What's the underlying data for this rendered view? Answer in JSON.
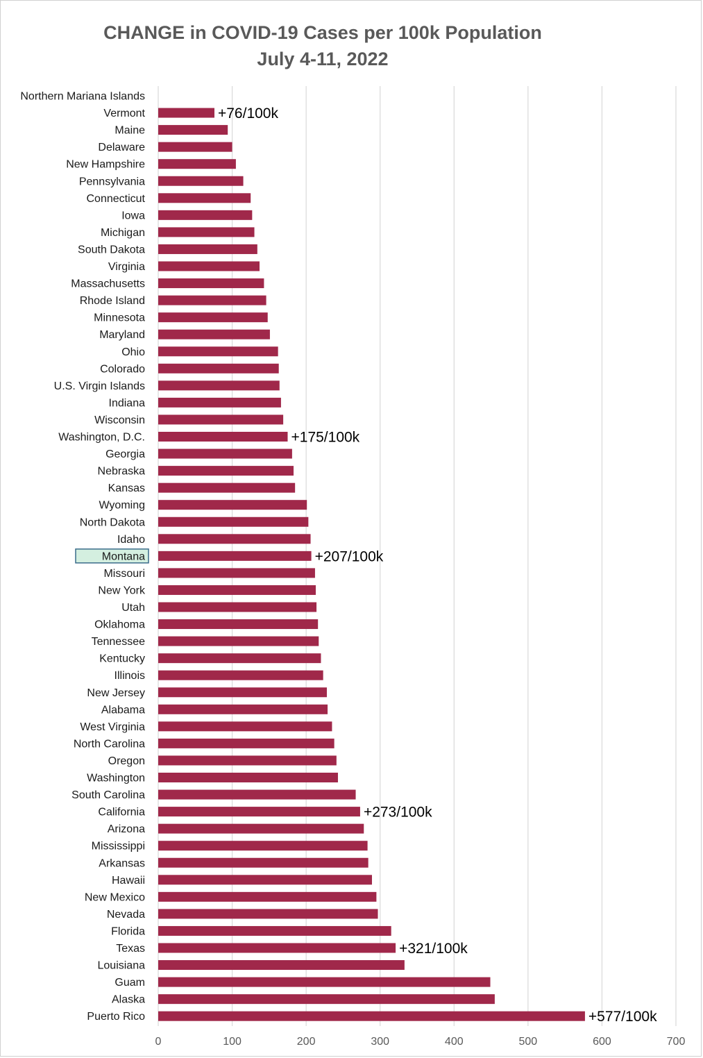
{
  "title": {
    "line1": "CHANGE in COVID-19 Cases per 100k Population",
    "line2": "July 4-11, 2022"
  },
  "colors": {
    "bar": "#a0284a",
    "grid": "#d9d9d9",
    "highlight_fill": "#d4efe0",
    "highlight_stroke": "#3a6b8a"
  },
  "highlighted_category": "Montana",
  "chart_data": {
    "type": "bar",
    "orientation": "horizontal",
    "title": "CHANGE in COVID-19 Cases per 100k Population July 4-11, 2022",
    "xlabel": "",
    "ylabel": "",
    "xlim": [
      0,
      700
    ],
    "xticks": [
      0,
      100,
      200,
      300,
      400,
      500,
      600,
      700
    ],
    "grid": "vertical",
    "categories": [
      "Northern Mariana Islands",
      "Vermont",
      "Maine",
      "Delaware",
      "New Hampshire",
      "Pennsylvania",
      "Connecticut",
      "Iowa",
      "Michigan",
      "South Dakota",
      "Virginia",
      "Massachusetts",
      "Rhode Island",
      "Minnesota",
      "Maryland",
      "Ohio",
      "Colorado",
      "U.S. Virgin Islands",
      "Indiana",
      "Wisconsin",
      "Washington, D.C.",
      "Georgia",
      "Nebraska",
      "Kansas",
      "Wyoming",
      "North Dakota",
      "Idaho",
      "Montana",
      "Missouri",
      "New York",
      "Utah",
      "Oklahoma",
      "Tennessee",
      "Kentucky",
      "Illinois",
      "New Jersey",
      "Alabama",
      "West Virginia",
      "North Carolina",
      "Oregon",
      "Washington",
      "South Carolina",
      "California",
      "Arizona",
      "Mississippi",
      "Arkansas",
      "Hawaii",
      "New Mexico",
      "Nevada",
      "Florida",
      "Texas",
      "Louisiana",
      "Guam",
      "Alaska",
      "Puerto Rico"
    ],
    "values": [
      0,
      76,
      94,
      100,
      105,
      115,
      125,
      127,
      130,
      134,
      137,
      143,
      146,
      148,
      151,
      162,
      163,
      164,
      166,
      169,
      175,
      181,
      183,
      185,
      201,
      203,
      206,
      207,
      212,
      213,
      214,
      216,
      217,
      220,
      223,
      228,
      229,
      235,
      238,
      241,
      243,
      267,
      273,
      278,
      283,
      284,
      289,
      295,
      297,
      315,
      321,
      333,
      449,
      455,
      577
    ],
    "annotations": [
      {
        "category": "Vermont",
        "text": "+76/100k"
      },
      {
        "category": "Washington, D.C.",
        "text": "+175/100k"
      },
      {
        "category": "Montana",
        "text": "+207/100k"
      },
      {
        "category": "California",
        "text": "+273/100k"
      },
      {
        "category": "Texas",
        "text": "+321/100k"
      },
      {
        "category": "Puerto Rico",
        "text": "+577/100k"
      }
    ]
  }
}
